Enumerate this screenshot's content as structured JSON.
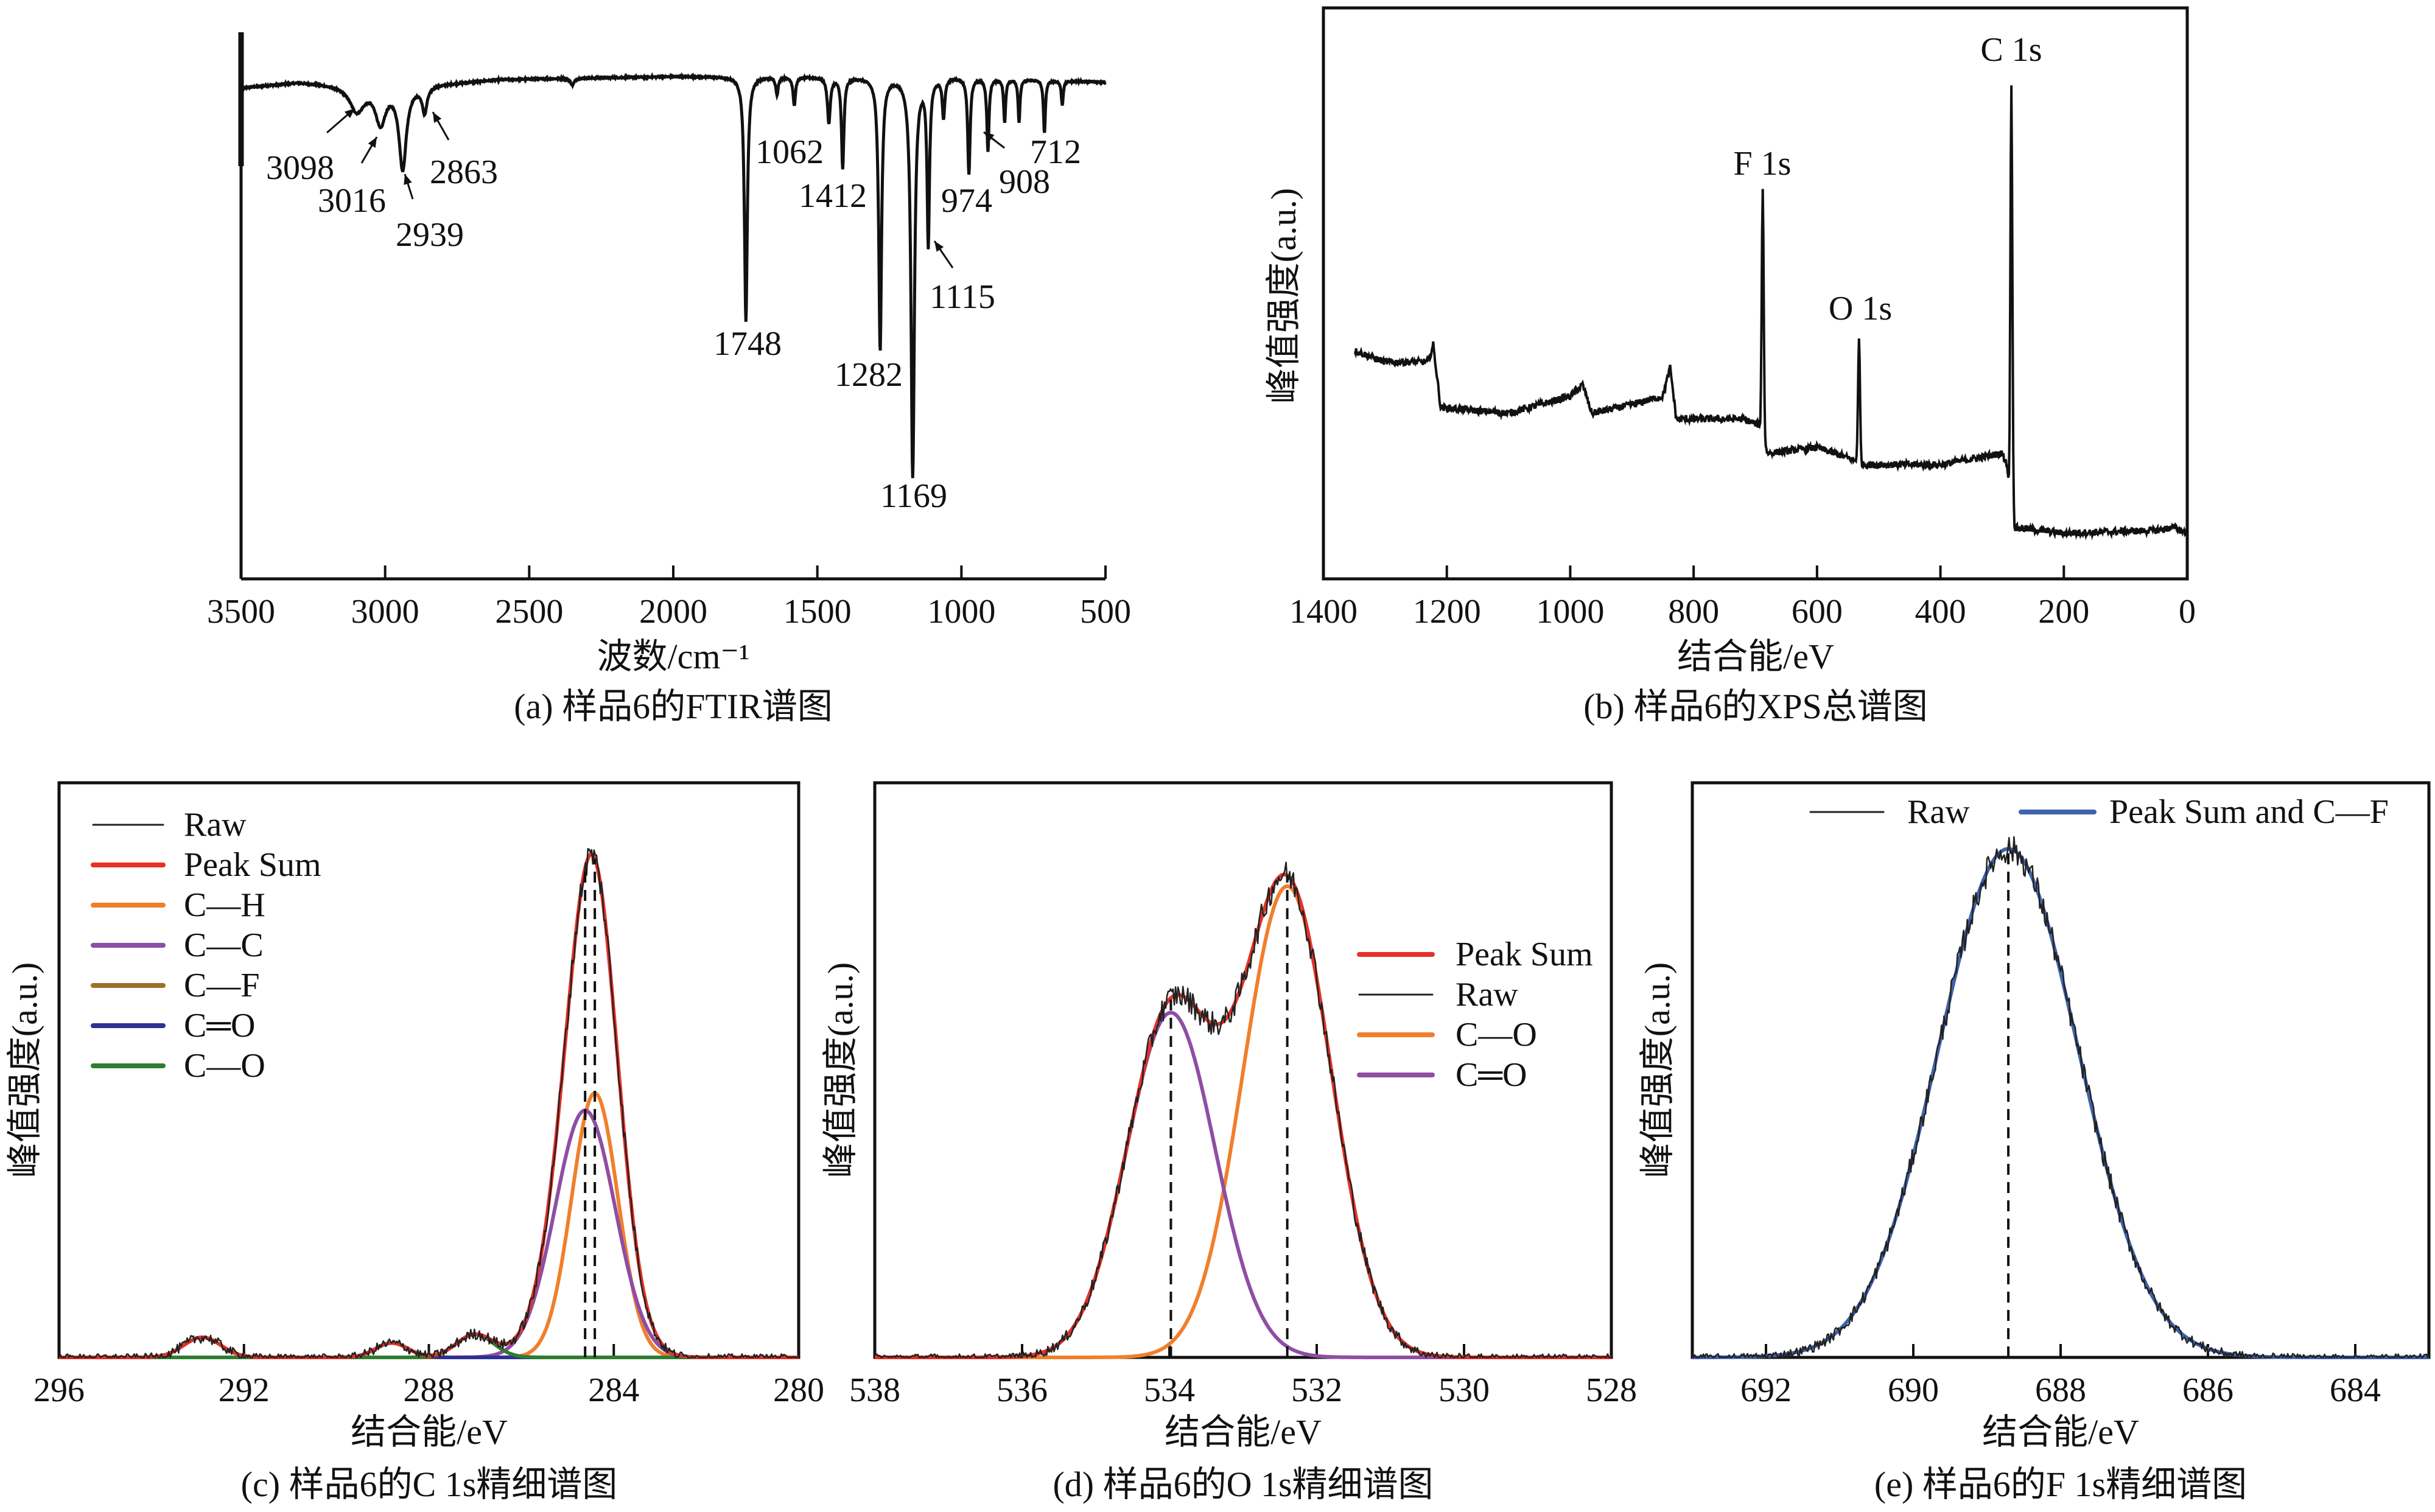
{
  "chart_data": [
    {
      "id": "a",
      "type": "line",
      "caption": "(a) 样品6的FTIR谱图",
      "xlabel": "波数/cm⁻¹",
      "ylabel": "",
      "xlim": [
        3500,
        500
      ],
      "x_reversed": true,
      "xticks": [
        3500,
        3000,
        2500,
        2000,
        1500,
        1000,
        500
      ],
      "ylim": [
        0,
        100
      ],
      "baseline": [
        [
          3500,
          86
        ],
        [
          3300,
          87
        ],
        [
          3000,
          86
        ],
        [
          2600,
          87.5
        ],
        [
          2000,
          88
        ],
        [
          1500,
          88
        ],
        [
          1000,
          88
        ],
        [
          500,
          87
        ]
      ],
      "peaks": [
        {
          "label": "3098",
          "x": 3098,
          "y_min": 82,
          "width": 60
        },
        {
          "label": "3016",
          "x": 3016,
          "y_min": 80,
          "width": 40
        },
        {
          "label": "2939",
          "x": 2939,
          "y_min": 72,
          "width": 30
        },
        {
          "label": "2863",
          "x": 2863,
          "y_min": 82,
          "width": 20
        },
        {
          "label": "",
          "x": 2350,
          "y_min": 86.5,
          "width": 15
        },
        {
          "label": "1748",
          "x": 1748,
          "y_min": 45,
          "width": 12
        },
        {
          "label": "",
          "x": 1640,
          "y_min": 85,
          "width": 10
        },
        {
          "label": "",
          "x": 1580,
          "y_min": 83,
          "width": 10
        },
        {
          "label": "",
          "x": 1460,
          "y_min": 80,
          "width": 12
        },
        {
          "label": "1412",
          "x": 1412,
          "y_min": 72,
          "width": 10
        },
        {
          "label": "1282",
          "x": 1282,
          "y_min": 40,
          "width": 12
        },
        {
          "label": "1169",
          "x": 1169,
          "y_min": 18,
          "width": 14
        },
        {
          "label": "1115",
          "x": 1115,
          "y_min": 59,
          "width": 10
        },
        {
          "label": "1062",
          "x": 1062,
          "y_min": 81,
          "width": 10
        },
        {
          "label": "974",
          "x": 974,
          "y_min": 71,
          "width": 10
        },
        {
          "label": "908",
          "x": 908,
          "y_min": 75,
          "width": 9
        },
        {
          "label": "",
          "x": 850,
          "y_min": 80,
          "width": 8
        },
        {
          "label": "",
          "x": 800,
          "y_min": 80,
          "width": 8
        },
        {
          "label": "712",
          "x": 712,
          "y_min": 78,
          "width": 8
        },
        {
          "label": "",
          "x": 650,
          "y_min": 83,
          "width": 8
        }
      ],
      "color": "#111111"
    },
    {
      "id": "b",
      "type": "line",
      "caption": "(b) 样品6的XPS总谱图",
      "xlabel": "结合能/eV",
      "ylabel": "峰值强度(a.u.)",
      "xlim": [
        1400,
        0
      ],
      "x_reversed": true,
      "xticks": [
        1400,
        1200,
        1000,
        800,
        600,
        400,
        200,
        0
      ],
      "ylim": [
        0,
        100
      ],
      "background": [
        [
          1350,
          40
        ],
        [
          1300,
          38
        ],
        [
          1230,
          38
        ],
        [
          1222,
          41
        ],
        [
          1210,
          30
        ],
        [
          1100,
          29
        ],
        [
          1000,
          32
        ],
        [
          980,
          34
        ],
        [
          965,
          29
        ],
        [
          900,
          30.5
        ],
        [
          850,
          32
        ],
        [
          838,
          37
        ],
        [
          828,
          28
        ],
        [
          720,
          28
        ],
        [
          695,
          27
        ],
        [
          680,
          22
        ],
        [
          600,
          23
        ],
        [
          545,
          21
        ],
        [
          525,
          20
        ],
        [
          400,
          20
        ],
        [
          300,
          22
        ],
        [
          292,
          20
        ],
        [
          288,
          14
        ],
        [
          280,
          9
        ],
        [
          200,
          8
        ],
        [
          50,
          8.5
        ],
        [
          20,
          9
        ],
        [
          0,
          8
        ]
      ],
      "peaks": [
        {
          "label": "C 1s",
          "x": 285,
          "y_max": 86
        },
        {
          "label": "F 1s",
          "x": 688,
          "y_max": 68
        },
        {
          "label": "O 1s",
          "x": 532,
          "y_max": 42
        }
      ],
      "color": "#111111"
    },
    {
      "id": "c",
      "type": "line",
      "caption": "(c) 样品6的C 1s精细谱图",
      "xlabel": "结合能/eV",
      "ylabel": "峰值强度(a.u.)",
      "xlim": [
        296,
        280
      ],
      "x_reversed": true,
      "xticks": [
        296,
        292,
        288,
        284,
        280
      ],
      "ylim": [
        0,
        1
      ],
      "legend_position": "top-left",
      "series": [
        {
          "name": "Raw",
          "color": "#222222",
          "kind": "raw"
        },
        {
          "name": "Peak Sum",
          "color": "#e53228",
          "kind": "sum"
        },
        {
          "name": "C—H",
          "color": "#f07f2c",
          "center": 284.41,
          "height": 0.46,
          "sigma": 0.5
        },
        {
          "name": "C—C",
          "color": "#8e4ea3",
          "center": 284.62,
          "height": 0.43,
          "sigma": 0.65
        },
        {
          "name": "C—F",
          "color": "#9a7127",
          "center": 292.9,
          "height": 0.035,
          "sigma": 0.4
        },
        {
          "name": "C═O",
          "color": "#2e3192",
          "center": 288.8,
          "height": 0.025,
          "sigma": 0.35
        },
        {
          "name": "C—O",
          "color": "#2f7d32",
          "center": 287.0,
          "height": 0.04,
          "sigma": 0.4
        }
      ],
      "dashed_lines": [
        284.62,
        284.41
      ]
    },
    {
      "id": "d",
      "type": "line",
      "caption": "(d) 样品6的O 1s精细谱图",
      "xlabel": "结合能/eV",
      "ylabel": "峰值强度(a.u.)",
      "xlim": [
        538,
        528
      ],
      "x_reversed": true,
      "xticks": [
        538,
        536,
        534,
        532,
        530,
        528
      ],
      "ylim": [
        0,
        1
      ],
      "legend_position": "right",
      "series": [
        {
          "name": "Peak Sum",
          "color": "#e53228",
          "kind": "sum"
        },
        {
          "name": "Raw",
          "color": "#222222",
          "kind": "raw"
        },
        {
          "name": "C—O",
          "color": "#f07f2c",
          "center": 532.4,
          "height": 0.82,
          "sigma": 0.6
        },
        {
          "name": "C═O",
          "color": "#8e4ea3",
          "center": 533.98,
          "height": 0.6,
          "sigma": 0.6
        }
      ],
      "dashed_lines": [
        533.98,
        532.4
      ]
    },
    {
      "id": "e",
      "type": "line",
      "caption": "(e) 样品6的F 1s精细谱图",
      "xlabel": "结合能/eV",
      "ylabel": "峰值强度(a.u.)",
      "xlim": [
        693,
        683
      ],
      "x_reversed": true,
      "xticks": [
        692,
        690,
        688,
        686,
        684
      ],
      "ylim": [
        0,
        1
      ],
      "legend_position": "top",
      "series": [
        {
          "name": "Raw",
          "color": "#222222",
          "kind": "raw"
        },
        {
          "name": "Peak Sum and C—F",
          "color": "#3f63ad",
          "center": 688.71,
          "height": 0.885,
          "sigma": 0.95
        }
      ],
      "dashed_lines": [
        688.71
      ]
    }
  ]
}
